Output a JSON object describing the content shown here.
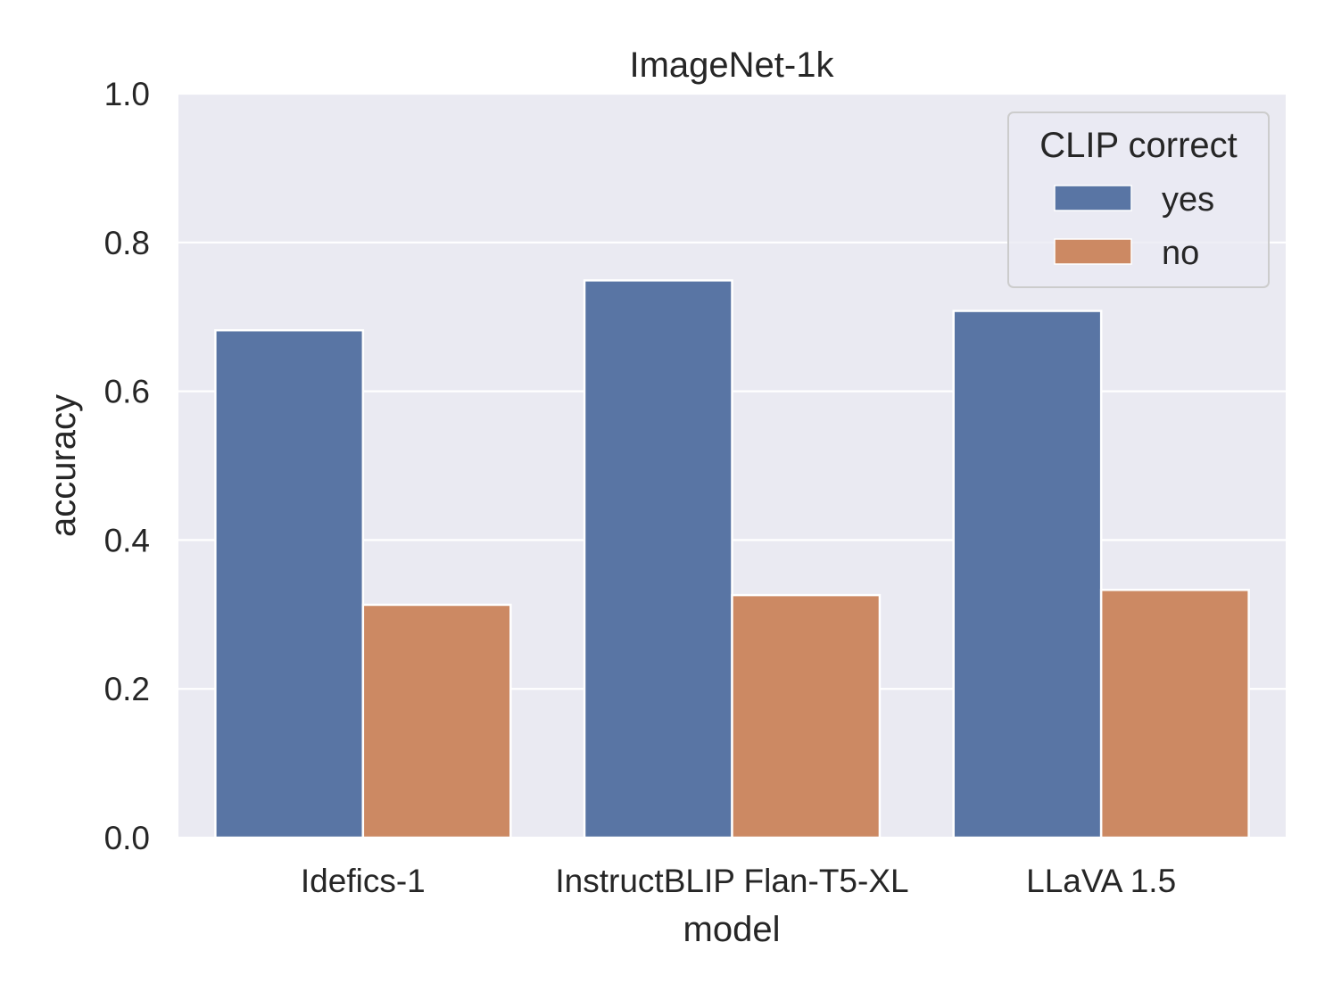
{
  "chart_data": {
    "type": "bar",
    "title": "ImageNet-1k",
    "xlabel": "model",
    "ylabel": "accuracy",
    "categories": [
      "Idefics-1",
      "InstructBLIP Flan-T5-XL",
      "LLaVA 1.5"
    ],
    "series": [
      {
        "name": "yes",
        "color": "#5975a4",
        "values": [
          0.682,
          0.749,
          0.708
        ]
      },
      {
        "name": "no",
        "color": "#cc8963",
        "values": [
          0.313,
          0.326,
          0.333
        ]
      }
    ],
    "ylim": [
      0,
      1.0
    ],
    "yticks": [
      "0.0",
      "0.2",
      "0.4",
      "0.6",
      "0.8",
      "1.0"
    ],
    "grid": true,
    "legend": {
      "title": "CLIP correct",
      "position": "top-right"
    },
    "style": {
      "plot_background": "#eaeaf2",
      "grid_color": "#ffffff"
    }
  }
}
